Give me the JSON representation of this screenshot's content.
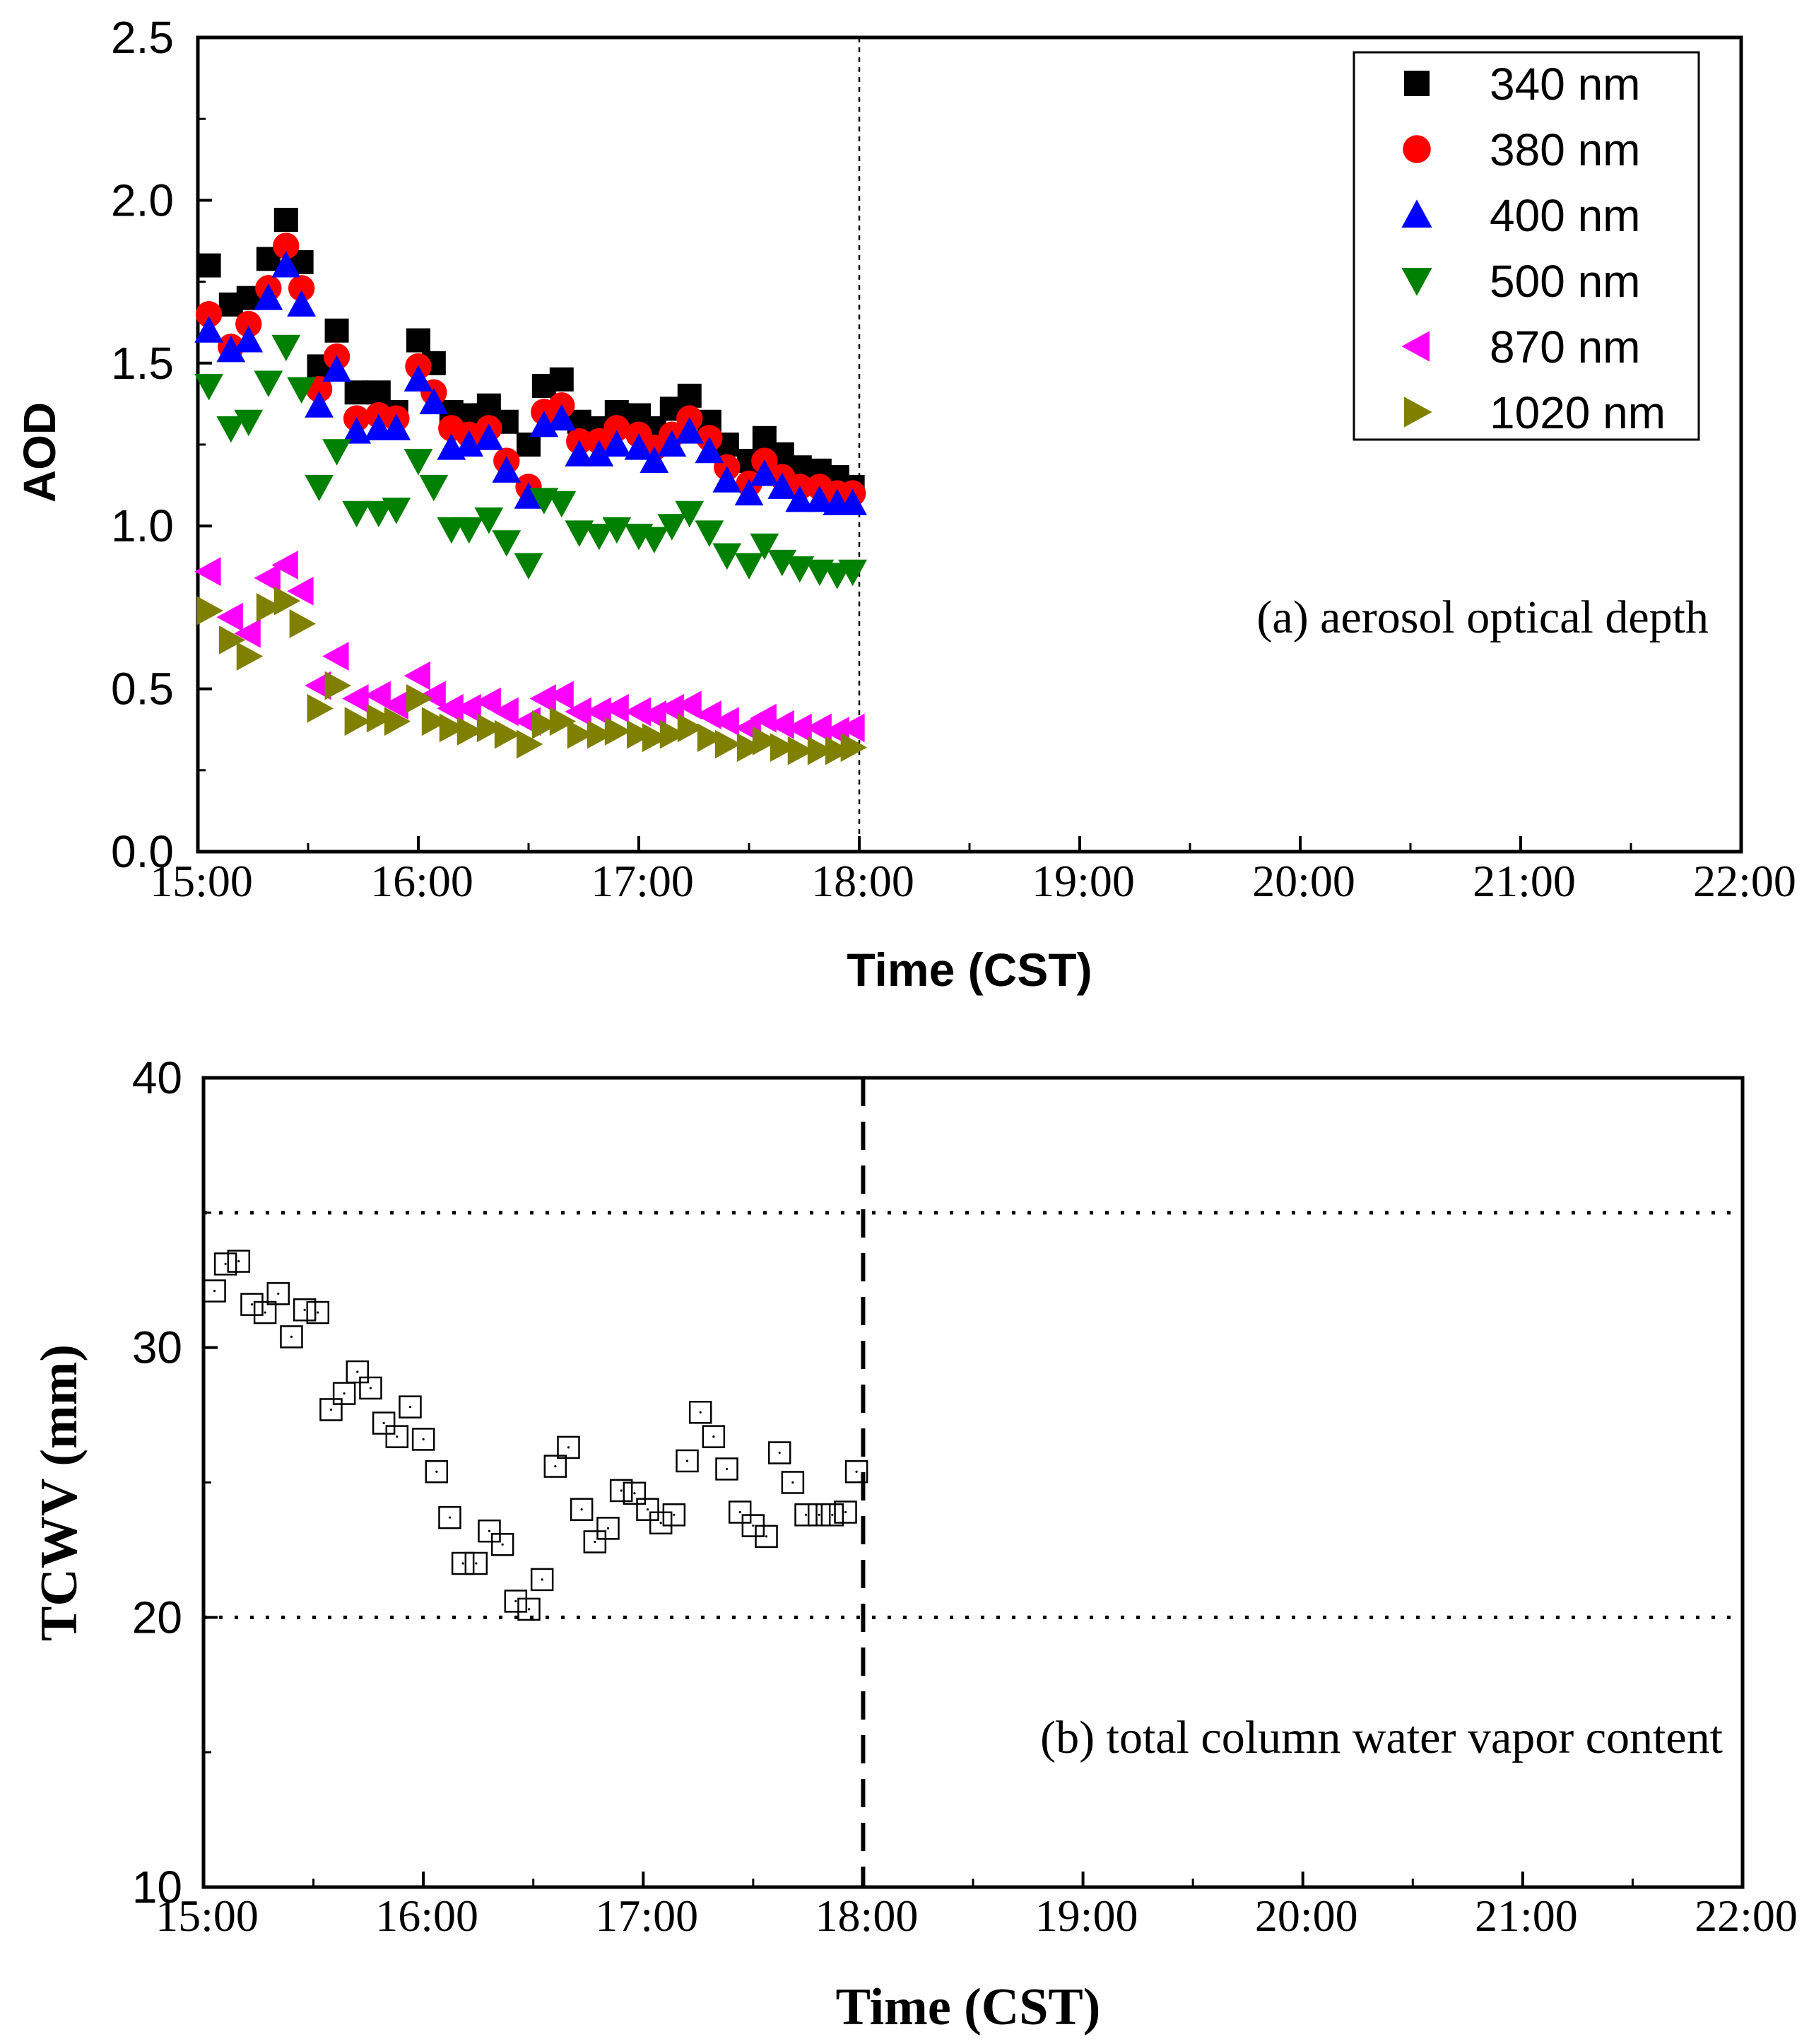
{
  "chart_data": [
    {
      "type": "scatter",
      "panel": "a",
      "annotation": "(a) aerosol optical depth",
      "xlabel": "Time (CST)",
      "ylabel": "AOD",
      "x_ticks": [
        "15:00",
        "16:00",
        "17:00",
        "18:00",
        "19:00",
        "20:00",
        "21:00",
        "22:00"
      ],
      "y_ticks": [
        "0.0",
        "0.5",
        "1.0",
        "1.5",
        "2.0",
        "2.5"
      ],
      "xlim_hours": [
        15,
        22
      ],
      "ylim": [
        0,
        2.5
      ],
      "reference_line_x": 18,
      "legend_position": "top-right",
      "x_hours": [
        15.05,
        15.15,
        15.23,
        15.32,
        15.4,
        15.47,
        15.55,
        15.63,
        15.72,
        15.82,
        15.9,
        16.0,
        16.07,
        16.15,
        16.23,
        16.32,
        16.4,
        16.5,
        16.57,
        16.65,
        16.73,
        16.82,
        16.9,
        17.0,
        17.07,
        17.15,
        17.23,
        17.32,
        17.4,
        17.5,
        17.57,
        17.65,
        17.73,
        17.82,
        17.9,
        17.97
      ],
      "series": [
        {
          "name": "340 nm",
          "marker": "square",
          "color": "#000000",
          "values": [
            1.8,
            1.68,
            1.7,
            1.82,
            1.94,
            1.81,
            1.49,
            1.6,
            1.41,
            1.41,
            1.35,
            1.57,
            1.5,
            1.35,
            1.34,
            1.37,
            1.32,
            1.25,
            1.43,
            1.45,
            1.32,
            1.3,
            1.35,
            1.34,
            1.3,
            1.36,
            1.4,
            1.32,
            1.25,
            1.2,
            1.27,
            1.22,
            1.18,
            1.17,
            1.15,
            1.12
          ]
        },
        {
          "name": "380 nm",
          "marker": "circle",
          "color": "#ff0000",
          "values": [
            1.65,
            1.55,
            1.62,
            1.73,
            1.86,
            1.73,
            1.42,
            1.52,
            1.33,
            1.34,
            1.33,
            1.49,
            1.41,
            1.3,
            1.28,
            1.3,
            1.2,
            1.12,
            1.35,
            1.37,
            1.26,
            1.26,
            1.3,
            1.28,
            1.24,
            1.28,
            1.33,
            1.27,
            1.18,
            1.13,
            1.2,
            1.15,
            1.12,
            1.12,
            1.1,
            1.1
          ]
        },
        {
          "name": "400 nm",
          "marker": "triangle-up",
          "color": "#0000ff",
          "values": [
            1.6,
            1.54,
            1.57,
            1.7,
            1.8,
            1.68,
            1.37,
            1.48,
            1.29,
            1.3,
            1.3,
            1.45,
            1.38,
            1.24,
            1.25,
            1.27,
            1.17,
            1.09,
            1.31,
            1.33,
            1.22,
            1.22,
            1.25,
            1.24,
            1.2,
            1.25,
            1.29,
            1.23,
            1.14,
            1.1,
            1.16,
            1.12,
            1.08,
            1.08,
            1.07,
            1.07
          ]
        },
        {
          "name": "500 nm",
          "marker": "triangle-down",
          "color": "#008000",
          "values": [
            1.43,
            1.3,
            1.32,
            1.44,
            1.55,
            1.42,
            1.12,
            1.23,
            1.04,
            1.04,
            1.05,
            1.2,
            1.12,
            0.99,
            0.99,
            1.02,
            0.95,
            0.88,
            1.08,
            1.07,
            0.98,
            0.97,
            0.99,
            0.97,
            0.96,
            1.0,
            1.04,
            0.98,
            0.91,
            0.88,
            0.94,
            0.89,
            0.87,
            0.86,
            0.85,
            0.86
          ]
        },
        {
          "name": "870 nm",
          "marker": "triangle-left",
          "color": "#ff00ff",
          "values": [
            0.86,
            0.72,
            0.67,
            0.84,
            0.88,
            0.8,
            0.51,
            0.6,
            0.47,
            0.48,
            0.45,
            0.54,
            0.48,
            0.44,
            0.44,
            0.46,
            0.43,
            0.4,
            0.47,
            0.48,
            0.43,
            0.43,
            0.44,
            0.43,
            0.42,
            0.44,
            0.45,
            0.42,
            0.4,
            0.38,
            0.41,
            0.39,
            0.38,
            0.38,
            0.37,
            0.38
          ]
        },
        {
          "name": "1020 nm",
          "marker": "triangle-right",
          "color": "#808000",
          "values": [
            0.74,
            0.65,
            0.6,
            0.75,
            0.77,
            0.7,
            0.44,
            0.51,
            0.4,
            0.41,
            0.4,
            0.47,
            0.4,
            0.38,
            0.37,
            0.38,
            0.36,
            0.33,
            0.39,
            0.4,
            0.36,
            0.36,
            0.37,
            0.36,
            0.35,
            0.36,
            0.38,
            0.35,
            0.33,
            0.32,
            0.34,
            0.32,
            0.31,
            0.31,
            0.31,
            0.32
          ]
        }
      ]
    },
    {
      "type": "scatter",
      "panel": "b",
      "annotation": "(b) total column water vapor content",
      "xlabel": "Time (CST)",
      "ylabel": "TCWV (mm)",
      "x_ticks": [
        "15:00",
        "16:00",
        "17:00",
        "18:00",
        "19:00",
        "20:00",
        "21:00",
        "22:00"
      ],
      "y_ticks": [
        "10",
        "20",
        "30",
        "40"
      ],
      "xlim_hours": [
        15,
        22
      ],
      "ylim": [
        10,
        40
      ],
      "reference_line_x": 18,
      "hlines": [
        35,
        20
      ],
      "series": [
        {
          "name": "TCWV",
          "marker": "open-square",
          "color": "#000000",
          "x_hours": [
            15.05,
            15.1,
            15.16,
            15.22,
            15.28,
            15.34,
            15.4,
            15.46,
            15.52,
            15.58,
            15.64,
            15.7,
            15.76,
            15.82,
            15.88,
            15.94,
            16.0,
            16.06,
            16.12,
            16.18,
            16.24,
            16.3,
            16.36,
            16.42,
            16.48,
            16.54,
            16.6,
            16.66,
            16.72,
            16.78,
            16.84,
            16.9,
            16.96,
            17.02,
            17.08,
            17.14,
            17.2,
            17.26,
            17.32,
            17.38,
            17.44,
            17.5,
            17.56,
            17.62,
            17.68,
            17.74,
            17.8,
            17.86,
            17.92,
            17.97
          ],
          "values": [
            32.1,
            33.1,
            33.2,
            31.6,
            31.3,
            32.0,
            30.4,
            31.4,
            31.3,
            27.7,
            28.3,
            29.1,
            28.5,
            27.2,
            26.7,
            27.8,
            26.6,
            25.4,
            23.7,
            22.0,
            22.0,
            23.2,
            22.7,
            20.6,
            20.3,
            21.4,
            25.6,
            26.3,
            24.0,
            22.8,
            23.3,
            24.7,
            24.6,
            24.0,
            23.5,
            23.8,
            25.8,
            27.6,
            26.7,
            25.5,
            23.9,
            23.4,
            23.0,
            26.1,
            25.0,
            23.8,
            23.8,
            23.8,
            23.9,
            25.4
          ]
        }
      ]
    }
  ]
}
